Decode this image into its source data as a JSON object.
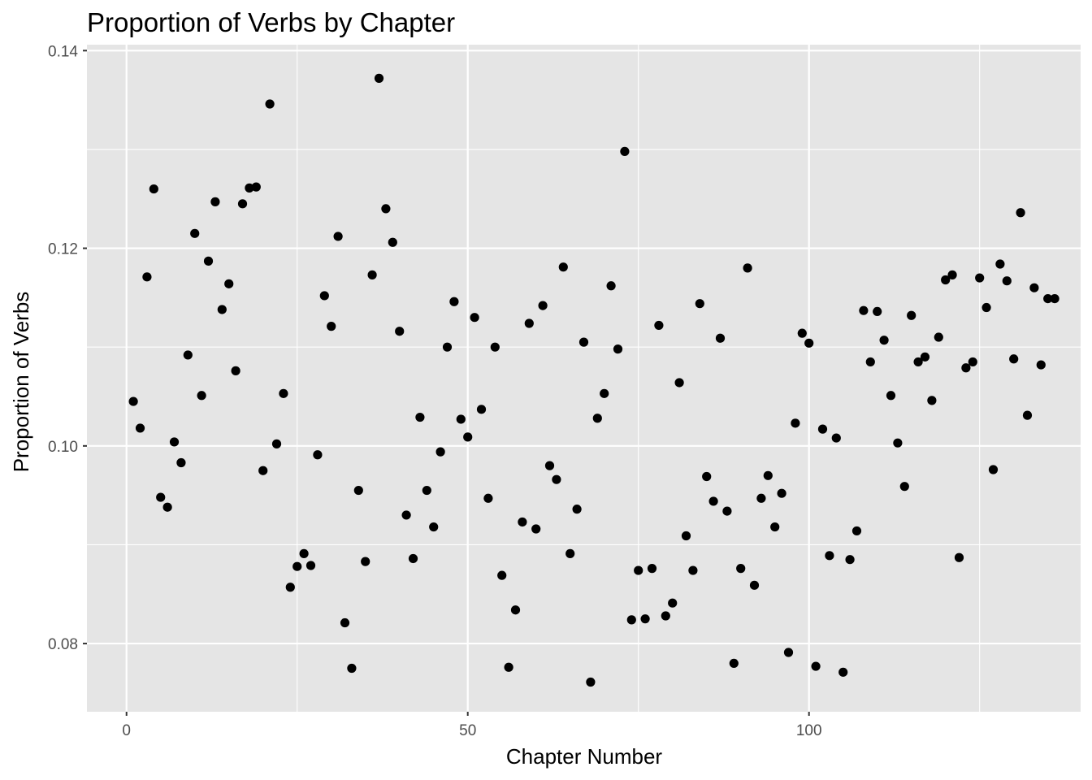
{
  "chart_data": {
    "type": "scatter",
    "title": "Proportion of Verbs by Chapter",
    "xlabel": "Chapter Number",
    "ylabel": "Proportion of Verbs",
    "xlim": [
      -5.8,
      139.8
    ],
    "ylim": [
      0.0731,
      0.1406
    ],
    "x_ticks": [
      0,
      50,
      100
    ],
    "x_tick_labels": [
      "0",
      "50",
      "100"
    ],
    "y_ticks": [
      0.08,
      0.1,
      0.12,
      0.14
    ],
    "y_tick_labels": [
      "0.08",
      "0.10",
      "0.12",
      "0.14"
    ],
    "grid": true,
    "panel_color": "#e5e5e5",
    "grid_color": "#ffffff",
    "point_color": "#000000",
    "x": [
      1,
      2,
      3,
      4,
      5,
      6,
      7,
      8,
      9,
      10,
      11,
      12,
      13,
      14,
      15,
      16,
      17,
      18,
      19,
      20,
      21,
      22,
      23,
      24,
      25,
      26,
      27,
      28,
      29,
      30,
      31,
      32,
      33,
      34,
      35,
      36,
      37,
      38,
      39,
      40,
      41,
      42,
      43,
      44,
      45,
      46,
      47,
      48,
      49,
      50,
      51,
      52,
      53,
      54,
      55,
      56,
      57,
      58,
      59,
      60,
      61,
      62,
      63,
      64,
      65,
      66,
      67,
      68,
      69,
      70,
      71,
      72,
      73,
      74,
      75,
      76,
      77,
      78,
      79,
      80,
      81,
      82,
      83,
      84,
      85,
      86,
      87,
      88,
      89,
      90,
      91,
      92,
      93,
      94,
      95,
      96,
      97,
      98,
      99,
      100,
      101,
      102,
      103,
      104,
      105,
      106,
      107,
      108,
      109,
      110,
      111,
      112,
      113,
      114,
      115,
      116,
      117,
      118,
      119,
      120,
      121,
      122,
      123,
      124,
      125,
      126,
      127,
      128,
      129,
      130,
      131,
      132,
      133,
      134,
      135,
      136
    ],
    "y": [
      0.1045,
      0.1018,
      0.1171,
      0.126,
      0.0948,
      0.0938,
      0.1004,
      0.0983,
      0.1092,
      0.1215,
      0.1051,
      0.1187,
      0.1247,
      0.1138,
      0.1164,
      0.1076,
      0.1245,
      0.1261,
      0.1262,
      0.0975,
      0.1346,
      0.1002,
      0.1053,
      0.0857,
      0.0878,
      0.0891,
      0.0879,
      0.0991,
      0.1152,
      0.1121,
      0.1212,
      0.0821,
      0.0775,
      0.0955,
      0.0883,
      0.1173,
      0.1372,
      0.124,
      0.1206,
      0.1116,
      0.093,
      0.0886,
      0.1029,
      0.0955,
      0.0918,
      0.0994,
      0.11,
      0.1146,
      0.1027,
      0.1009,
      0.113,
      0.1037,
      0.0947,
      0.11,
      0.0869,
      0.0776,
      0.0834,
      0.0923,
      0.1124,
      0.0916,
      0.1142,
      0.098,
      0.0966,
      0.1181,
      0.0891,
      0.0936,
      0.1105,
      0.0761,
      0.1028,
      0.1053,
      0.1162,
      0.1098,
      0.1298,
      0.0824,
      0.0874,
      0.0825,
      0.0876,
      0.1122,
      0.0828,
      0.0841,
      0.1064,
      0.0909,
      0.0874,
      0.1144,
      0.0969,
      0.0944,
      0.1109,
      0.0934,
      0.078,
      0.0876,
      0.118,
      0.0859,
      0.0947,
      0.097,
      0.0918,
      0.0952,
      0.0791,
      0.1023,
      0.1114,
      0.1104,
      0.0777,
      0.1017,
      0.0889,
      0.1008,
      0.0771,
      0.0885,
      0.0914,
      0.1137,
      0.1085,
      0.1136,
      0.1107,
      0.1051,
      0.1003,
      0.0959,
      0.1132,
      0.1085,
      0.109,
      0.1046,
      0.111,
      0.1168,
      0.1173,
      0.0887,
      0.1079,
      0.1085,
      0.117,
      0.114,
      0.0976,
      0.1184,
      0.1167,
      0.1088,
      0.1236,
      0.1031,
      0.116,
      0.1082,
      0.1149,
      0.1149
    ]
  }
}
